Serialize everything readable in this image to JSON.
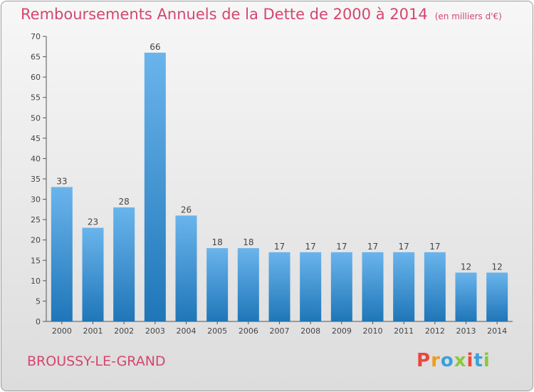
{
  "title": "Remboursements Annuels de la Dette de 2000 à 2014",
  "subtitle": "(en milliers d'€)",
  "commune": "BROUSSY-LE-GRAND",
  "logo": {
    "text": "Proxiti",
    "colors": [
      "#e8483d",
      "#f09b1a",
      "#3aa0dc",
      "#8dc63f",
      "#e8483d",
      "#3aa0dc",
      "#8dc63f"
    ]
  },
  "colors": {
    "title": "#d4466e",
    "bar_top": "#6ab4ec",
    "bar_bottom": "#1f76b8",
    "axis": "#555555"
  },
  "chart_data": {
    "type": "bar",
    "categories": [
      "2000",
      "2001",
      "2002",
      "2003",
      "2004",
      "2005",
      "2006",
      "2007",
      "2008",
      "2009",
      "2010",
      "2011",
      "2012",
      "2013",
      "2014"
    ],
    "values": [
      33,
      23,
      28,
      66,
      26,
      18,
      18,
      17,
      17,
      17,
      17,
      17,
      17,
      12,
      12
    ],
    "data_labels": [
      "33",
      "23",
      "28",
      "66",
      "26",
      "18",
      "18",
      "17",
      "17",
      "17",
      "17",
      "17",
      "17",
      "12",
      "12"
    ],
    "title": "Remboursements Annuels de la Dette de 2000 à 2014",
    "xlabel": "",
    "ylabel": "",
    "ylim": [
      0,
      70
    ],
    "yticks": [
      "0",
      "5",
      "10",
      "15",
      "20",
      "25",
      "30",
      "35",
      "40",
      "45",
      "50",
      "55",
      "60",
      "65",
      "70"
    ],
    "grid": false,
    "legend": "none"
  }
}
